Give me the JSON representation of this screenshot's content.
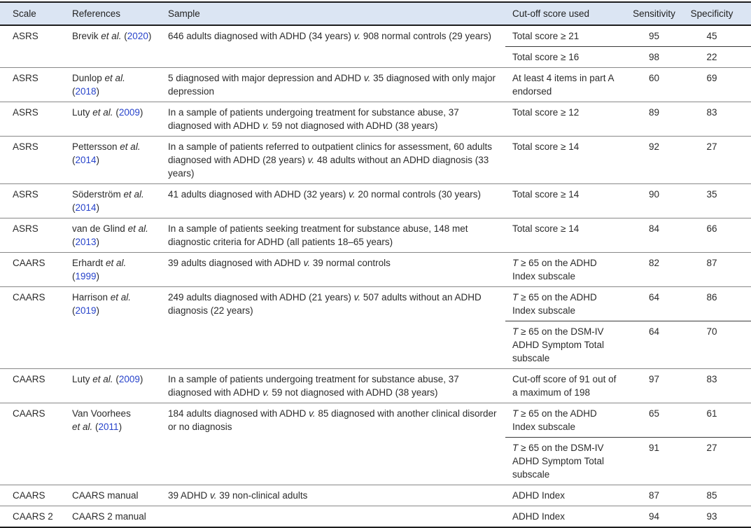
{
  "colors": {
    "header_bg": "#dbe5f3",
    "citation_link": "#2743cb",
    "rule_dark": "#1d1d1d",
    "rule_gray": "#888888"
  },
  "header": {
    "scale": "Scale",
    "references": "References",
    "sample": "Sample",
    "cutoff": "Cut-off score used",
    "sensitivity": "Sensitivity",
    "specificity": "Specificity"
  },
  "rows": [
    {
      "scale": "ASRS",
      "ref": {
        "a1": "Brevik ",
        "e1": "et al.",
        "b1": " (",
        "y1": "2020",
        "c1": ")"
      },
      "sample": {
        "pre": "646 adults diagnosed with ADHD (34 years) ",
        "v": "v.",
        "post": " 908 normal controls (29 years)"
      },
      "cutoffs": [
        {
          "text": "Total score ≥ 21",
          "sens": "95",
          "spec": "45"
        },
        {
          "text": "Total score ≥ 16",
          "sens": "98",
          "spec": "22"
        }
      ]
    },
    {
      "scale": "ASRS",
      "ref": {
        "a1": "Dunlop ",
        "e1": "et al.",
        "b2": "(",
        "y2": "2018",
        "c2": ")"
      },
      "sample": {
        "pre": "5 diagnosed with major depression and ADHD ",
        "v": "v.",
        "post": " 35 diagnosed with only major depression"
      },
      "cutoffs": [
        {
          "text": "At least 4 items in part A endorsed",
          "sens": "60",
          "spec": "69"
        }
      ]
    },
    {
      "scale": "ASRS",
      "ref": {
        "a1": "Luty ",
        "e1": "et al.",
        "b1": " (",
        "y1": "2009",
        "c1": ")"
      },
      "sample": {
        "pre": "In a sample of patients undergoing treatment for substance abuse, 37 diagnosed with ADHD ",
        "v": "v.",
        "post": " 59 not diagnosed with ADHD (38 years)"
      },
      "cutoffs": [
        {
          "text": "Total score ≥ 12",
          "sens": "89",
          "spec": "83"
        }
      ]
    },
    {
      "scale": "ASRS",
      "ref": {
        "a1": "Pettersson ",
        "e1": "et al.",
        "b2": "(",
        "y2": "2014",
        "c2": ")"
      },
      "sample": {
        "pre": "In a sample of patients referred to outpatient clinics for assessment, 60 adults diagnosed with ADHD (28 years) ",
        "v": "v.",
        "post": " 48 adults without an ADHD diagnosis (33 years)"
      },
      "cutoffs": [
        {
          "text": "Total score ≥ 14",
          "sens": "92",
          "spec": "27"
        }
      ]
    },
    {
      "scale": "ASRS",
      "ref": {
        "a1": "Söderström ",
        "e1": "et al.",
        "b2": "(",
        "y2": "2014",
        "c2": ")"
      },
      "sample": {
        "pre": "41 adults diagnosed with ADHD (32 years) ",
        "v": "v.",
        "post": " 20 normal controls (30 years)"
      },
      "cutoffs": [
        {
          "text": "Total score ≥ 14",
          "sens": "90",
          "spec": "35"
        }
      ]
    },
    {
      "scale": "ASRS",
      "ref": {
        "a1": "van de Glind ",
        "e1": "et al.",
        "b2": "(",
        "y2": "2013",
        "c2": ")"
      },
      "sample": {
        "pre": "In a sample of patients seeking treatment for substance abuse, 148 met diagnostic criteria for ADHD (all patients 18–65 years)"
      },
      "cutoffs": [
        {
          "text": "Total score ≥ 14",
          "sens": "84",
          "spec": "66"
        }
      ]
    },
    {
      "scale": "CAARS",
      "ref": {
        "a1": "Erhardt ",
        "e1": "et al.",
        "b2": "(",
        "y2": "1999",
        "c2": ")"
      },
      "sample": {
        "pre": "39 adults diagnosed with ADHD ",
        "v": "v.",
        "post": " 39 normal controls"
      },
      "cutoffs": [
        {
          "t": "T",
          "text": " ≥ 65 on the ADHD Index subscale",
          "sens": "82",
          "spec": "87"
        }
      ]
    },
    {
      "scale": "CAARS",
      "ref": {
        "a1": "Harrison ",
        "e1": "et al.",
        "b2": "(",
        "y2": "2019",
        "c2": ")"
      },
      "sample": {
        "pre": "249 adults diagnosed with ADHD (21 years) ",
        "v": "v.",
        "post": " 507 adults without an ADHD diagnosis (22 years)"
      },
      "cutoffs": [
        {
          "t": "T",
          "text": " ≥ 65 on the ADHD Index subscale",
          "sens": "64",
          "spec": "86"
        },
        {
          "t": "T",
          "text": " ≥ 65 on the DSM-IV ADHD Symptom Total subscale",
          "sens": "64",
          "spec": "70"
        }
      ]
    },
    {
      "scale": "CAARS",
      "ref": {
        "a1": "Luty ",
        "e1": "et al.",
        "b1": " (",
        "y1": "2009",
        "c1": ")"
      },
      "sample": {
        "pre": "In a sample of patients undergoing treatment for substance abuse, 37 diagnosed with ADHD ",
        "v": "v.",
        "post": " 59 not diagnosed with ADHD (38 years)"
      },
      "cutoffs": [
        {
          "text": "Cut-off score of 91 out of a maximum of 198",
          "sens": "97",
          "spec": "83"
        }
      ]
    },
    {
      "scale": "CAARS",
      "ref": {
        "a1": "Van Voorhees",
        "e2": "et al.",
        "b2": " (",
        "y2": "2011",
        "c2": ")"
      },
      "sample": {
        "pre": "184 adults diagnosed with ADHD ",
        "v": "v.",
        "post": " 85 diagnosed with another clinical disorder or no diagnosis"
      },
      "cutoffs": [
        {
          "t": "T",
          "text": " ≥ 65 on the ADHD Index subscale",
          "sens": "65",
          "spec": "61"
        },
        {
          "t": "T",
          "text": " ≥ 65 on the DSM-IV ADHD Symptom Total subscale",
          "sens": "91",
          "spec": "27"
        }
      ]
    },
    {
      "scale": "CAARS",
      "ref": {
        "a1": "CAARS manual"
      },
      "sample": {
        "pre": "39 ADHD ",
        "v": "v.",
        "post": " 39 non-clinical adults"
      },
      "cutoffs": [
        {
          "text": "ADHD Index",
          "sens": "87",
          "spec": "85"
        }
      ]
    },
    {
      "scale": "CAARS 2",
      "ref": {
        "a1": "CAARS 2 manual"
      },
      "sample": {},
      "cutoffs": [
        {
          "text": "ADHD Index",
          "sens": "94",
          "spec": "93"
        }
      ]
    }
  ]
}
